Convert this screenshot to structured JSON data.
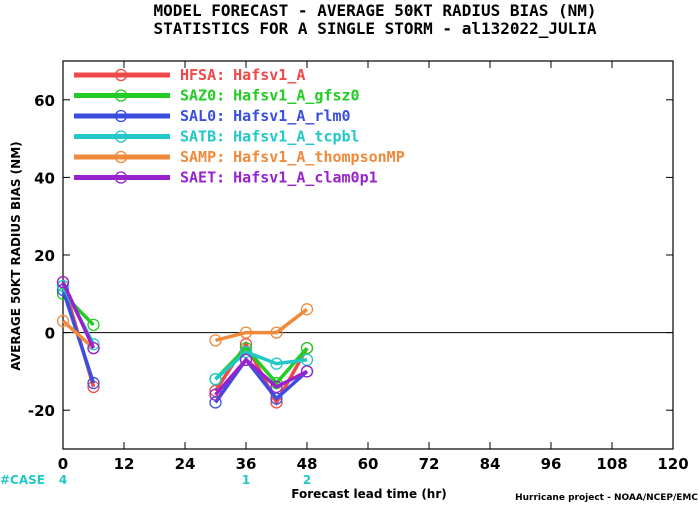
{
  "chart_data": {
    "type": "line",
    "title": "MODEL FORECAST - AVERAGE 50KT RADIUS BIAS (NM)",
    "subtitle": "STATISTICS FOR A SINGLE STORM - al132022_JULIA",
    "xlabel": "Forecast lead time (hr)",
    "ylabel": "AVERAGE 50KT RADIUS BIAS (NM)",
    "xlim": [
      0,
      120
    ],
    "ylim": [
      -30,
      70
    ],
    "xticks": [
      0,
      12,
      24,
      36,
      48,
      60,
      72,
      84,
      96,
      108,
      120
    ],
    "yticks": [
      -20,
      0,
      20,
      40,
      60
    ],
    "x_tick_labels": [
      "0",
      "12",
      "24",
      "36",
      "48",
      "60",
      "72",
      "84",
      "96",
      "108",
      "120"
    ],
    "y_tick_labels": [
      "-20",
      "0",
      "20",
      "40",
      "60"
    ],
    "zero_line": true,
    "grid": false,
    "legend_position": "top-left",
    "case_label": "#CASE",
    "case_counts": [
      {
        "x": 0,
        "count": "4"
      },
      {
        "x": 36,
        "count": "1"
      },
      {
        "x": 48,
        "count": "2"
      }
    ],
    "credit": "Hurricane project - NOAA/NCEP/EMC",
    "series": [
      {
        "name": "HFSA:",
        "desc": "Hafsv1_A",
        "color": "#f04848",
        "points": [
          [
            0,
            13
          ],
          [
            6,
            -14
          ],
          null,
          [
            30,
            -15
          ],
          [
            36,
            -3
          ],
          [
            42,
            -18
          ],
          [
            48,
            -4
          ]
        ]
      },
      {
        "name": "SAZ0:",
        "desc": "Hafsv1_A_gfsz0",
        "color": "#22cc22",
        "points": [
          [
            0,
            10
          ],
          [
            6,
            2
          ],
          null,
          [
            30,
            -12
          ],
          [
            36,
            -4
          ],
          [
            42,
            -13
          ],
          [
            48,
            -4
          ]
        ]
      },
      {
        "name": "SAL0:",
        "desc": "Hafsv1_A_rlm0",
        "color": "#3a4ee0",
        "points": [
          [
            0,
            11
          ],
          [
            6,
            -13
          ],
          null,
          [
            30,
            -18
          ],
          [
            36,
            -7
          ],
          [
            42,
            -17
          ],
          [
            48,
            -10
          ]
        ]
      },
      {
        "name": "SATB:",
        "desc": "Hafsv1_A_tcpbl",
        "color": "#22c8c8",
        "points": [
          [
            0,
            12
          ],
          [
            6,
            -3
          ],
          null,
          [
            30,
            -12
          ],
          [
            36,
            -5
          ],
          [
            42,
            -8
          ],
          [
            48,
            -7
          ]
        ]
      },
      {
        "name": "SAMP:",
        "desc": "Hafsv1_A_thompsonMP",
        "color": "#f08a3a",
        "points": [
          [
            0,
            3
          ],
          [
            6,
            -4
          ],
          null,
          [
            30,
            -2
          ],
          [
            36,
            0
          ],
          [
            42,
            0
          ],
          [
            48,
            6
          ]
        ]
      },
      {
        "name": "SAET:",
        "desc": "Hafsv1_A_clam0p1",
        "color": "#9a22cc",
        "points": [
          [
            0,
            13
          ],
          [
            6,
            -4
          ],
          null,
          [
            30,
            -16
          ],
          [
            36,
            -7
          ],
          [
            42,
            -14
          ],
          [
            48,
            -10
          ]
        ]
      }
    ]
  }
}
